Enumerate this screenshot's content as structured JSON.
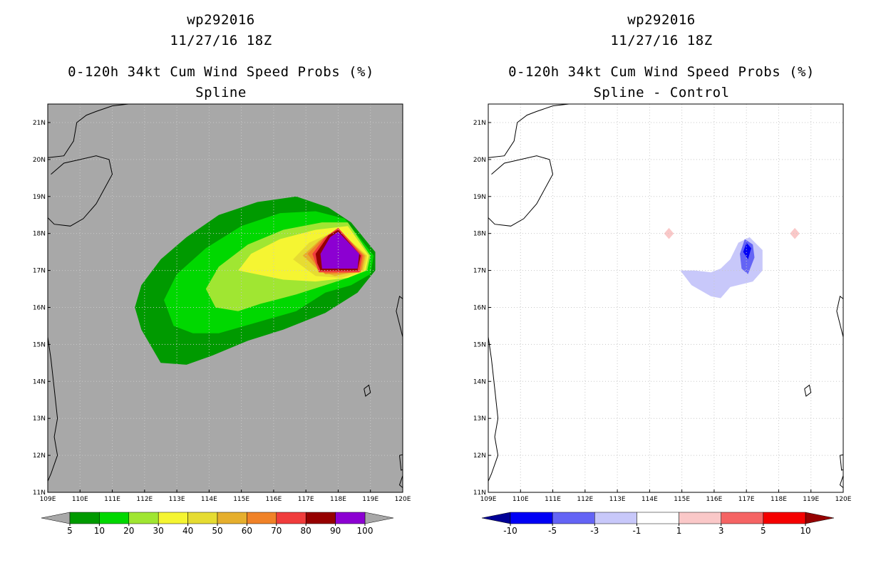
{
  "chart_data": [
    {
      "type": "heatmap",
      "id": "left",
      "title_lines": [
        "wp292016",
        "11/27/16 18Z",
        "0-120h 34kt Cum Wind Speed Probs (%)",
        "Spline"
      ],
      "xlabel": "",
      "ylabel": "",
      "xlim": [
        109,
        120
      ],
      "ylim": [
        11,
        21.5
      ],
      "x_ticks": [
        "109E",
        "110E",
        "111E",
        "112E",
        "113E",
        "114E",
        "115E",
        "116E",
        "117E",
        "118E",
        "119E",
        "120E"
      ],
      "y_ticks": [
        "11N",
        "12N",
        "13N",
        "14N",
        "15N",
        "16N",
        "17N",
        "18N",
        "19N",
        "20N",
        "21N"
      ],
      "grid": true,
      "background": "#a8a8a8",
      "colorbar": {
        "labels": [
          "5",
          "10",
          "20",
          "30",
          "40",
          "50",
          "60",
          "70",
          "80",
          "90",
          "100"
        ],
        "colors": [
          "#009a00",
          "#00d800",
          "#a0e632",
          "#f5f532",
          "#e6dc32",
          "#e6af2d",
          "#f08228",
          "#f03c3c",
          "#960000",
          "#8c00d2"
        ],
        "end_colors": [
          "#a8a8a8",
          "#a8a8a8"
        ]
      },
      "contours": [
        {
          "level": 5,
          "color": "#009a00",
          "points": [
            [
              111.9,
              15.4
            ],
            [
              111.7,
              16.0
            ],
            [
              111.9,
              16.6
            ],
            [
              112.5,
              17.3
            ],
            [
              113.3,
              17.9
            ],
            [
              114.3,
              18.5
            ],
            [
              115.5,
              18.85
            ],
            [
              116.7,
              19.0
            ],
            [
              117.7,
              18.7
            ],
            [
              118.4,
              18.3
            ],
            [
              119.15,
              17.5
            ],
            [
              119.15,
              17.0
            ],
            [
              118.6,
              16.4
            ],
            [
              117.6,
              15.85
            ],
            [
              116.3,
              15.4
            ],
            [
              115.2,
              15.1
            ],
            [
              114.1,
              14.7
            ],
            [
              113.3,
              14.45
            ],
            [
              112.5,
              14.5
            ]
          ]
        },
        {
          "level": 10,
          "color": "#00d800",
          "points": [
            [
              112.9,
              15.5
            ],
            [
              112.6,
              16.2
            ],
            [
              113.0,
              16.9
            ],
            [
              113.9,
              17.6
            ],
            [
              115.0,
              18.2
            ],
            [
              116.2,
              18.55
            ],
            [
              117.3,
              18.6
            ],
            [
              118.2,
              18.4
            ],
            [
              119.1,
              17.4
            ],
            [
              119.0,
              16.9
            ],
            [
              118.4,
              16.6
            ],
            [
              117.6,
              16.4
            ],
            [
              116.7,
              15.9
            ],
            [
              115.5,
              15.6
            ],
            [
              114.3,
              15.3
            ],
            [
              113.5,
              15.3
            ]
          ]
        },
        {
          "level": 20,
          "color": "#a0e632",
          "points": [
            [
              114.2,
              16.0
            ],
            [
              113.9,
              16.5
            ],
            [
              114.3,
              17.1
            ],
            [
              115.2,
              17.7
            ],
            [
              116.3,
              18.1
            ],
            [
              117.5,
              18.3
            ],
            [
              118.3,
              18.3
            ],
            [
              119.0,
              17.4
            ],
            [
              118.9,
              17.0
            ],
            [
              118.3,
              16.8
            ],
            [
              117.6,
              16.6
            ],
            [
              116.7,
              16.35
            ],
            [
              115.6,
              16.1
            ],
            [
              114.9,
              15.9
            ]
          ]
        },
        {
          "level": 30,
          "color": "#f5f532",
          "points": [
            [
              114.9,
              17.0
            ],
            [
              115.3,
              17.45
            ],
            [
              116.2,
              17.85
            ],
            [
              117.3,
              18.1
            ],
            [
              118.3,
              18.2
            ],
            [
              118.95,
              17.4
            ],
            [
              118.85,
              17.0
            ],
            [
              118.3,
              16.8
            ],
            [
              117.3,
              16.7
            ],
            [
              116.3,
              16.75
            ]
          ]
        },
        {
          "level": 40,
          "color": "#e6dc32",
          "points": [
            [
              116.6,
              17.3
            ],
            [
              117.1,
              17.75
            ],
            [
              118.0,
              18.1
            ],
            [
              118.9,
              17.4
            ],
            [
              118.8,
              17.0
            ],
            [
              118.1,
              16.8
            ],
            [
              117.3,
              16.85
            ]
          ]
        },
        {
          "level": 50,
          "color": "#e6af2d",
          "points": [
            [
              116.9,
              17.4
            ],
            [
              117.4,
              17.8
            ],
            [
              118.0,
              18.1
            ],
            [
              118.85,
              17.4
            ],
            [
              118.75,
              17.0
            ],
            [
              117.9,
              16.85
            ],
            [
              117.4,
              17.0
            ]
          ]
        },
        {
          "level": 60,
          "color": "#f08228",
          "points": [
            [
              117.05,
              17.45
            ],
            [
              117.5,
              17.85
            ],
            [
              118.0,
              18.15
            ],
            [
              118.8,
              17.4
            ],
            [
              118.7,
              16.95
            ],
            [
              117.6,
              16.9
            ],
            [
              117.35,
              17.1
            ]
          ]
        },
        {
          "level": 70,
          "color": "#f03c3c",
          "points": [
            [
              117.2,
              17.45
            ],
            [
              117.6,
              17.9
            ],
            [
              118.0,
              18.15
            ],
            [
              118.75,
              17.4
            ],
            [
              118.65,
              16.95
            ],
            [
              117.4,
              16.95
            ],
            [
              117.3,
              17.2
            ]
          ]
        },
        {
          "level": 80,
          "color": "#960000",
          "points": [
            [
              117.3,
              17.45
            ],
            [
              117.7,
              17.95
            ],
            [
              118.0,
              18.1
            ],
            [
              118.7,
              17.4
            ],
            [
              118.6,
              17.0
            ],
            [
              117.45,
              17.0
            ],
            [
              117.35,
              17.2
            ]
          ]
        },
        {
          "level": 90,
          "color": "#8c00d2",
          "points": [
            [
              117.45,
              17.45
            ],
            [
              117.75,
              17.9
            ],
            [
              118.0,
              18.05
            ],
            [
              118.65,
              17.45
            ],
            [
              118.6,
              17.05
            ],
            [
              117.5,
              17.05
            ]
          ]
        }
      ]
    },
    {
      "type": "heatmap",
      "id": "right",
      "title_lines": [
        "wp292016",
        "11/27/16 18Z",
        "0-120h 34kt Cum Wind Speed Probs (%)",
        "Spline - Control"
      ],
      "xlabel": "",
      "ylabel": "",
      "xlim": [
        109,
        120
      ],
      "ylim": [
        11,
        21.5
      ],
      "x_ticks": [
        "109E",
        "110E",
        "111E",
        "112E",
        "113E",
        "114E",
        "115E",
        "116E",
        "117E",
        "118E",
        "119E",
        "120E"
      ],
      "y_ticks": [
        "11N",
        "12N",
        "13N",
        "14N",
        "15N",
        "16N",
        "17N",
        "18N",
        "19N",
        "20N",
        "21N"
      ],
      "grid": true,
      "background": "#ffffff",
      "colorbar": {
        "labels": [
          "-10",
          "-5",
          "-3",
          "-1",
          "1",
          "3",
          "5",
          "10"
        ],
        "colors": [
          "#0000f5",
          "#6464f5",
          "#c8c8fa",
          "#ffffff",
          "#fac8c8",
          "#f56464",
          "#f50000"
        ],
        "end_colors": [
          "#000096",
          "#960000"
        ]
      },
      "contours": [
        {
          "level": -1,
          "color": "#c8c8fa",
          "points": [
            [
              114.95,
              17.0
            ],
            [
              115.3,
              16.6
            ],
            [
              115.9,
              16.3
            ],
            [
              116.2,
              16.25
            ],
            [
              116.5,
              16.55
            ],
            [
              117.2,
              16.7
            ],
            [
              117.5,
              17.0
            ],
            [
              117.5,
              17.55
            ],
            [
              117.1,
              17.9
            ],
            [
              116.75,
              17.75
            ],
            [
              116.5,
              17.3
            ],
            [
              116.2,
              17.05
            ],
            [
              115.9,
              16.95
            ],
            [
              115.4,
              17.0
            ]
          ]
        },
        {
          "level": -3,
          "color": "#6464f5",
          "points": [
            [
              116.8,
              17.45
            ],
            [
              116.95,
              17.85
            ],
            [
              117.2,
              17.7
            ],
            [
              117.25,
              17.35
            ],
            [
              117.05,
              16.9
            ],
            [
              116.85,
              17.05
            ]
          ]
        },
        {
          "level": -5,
          "color": "#0000f5",
          "points": [
            [
              116.9,
              17.5
            ],
            [
              117.0,
              17.75
            ],
            [
              117.15,
              17.6
            ],
            [
              117.05,
              17.3
            ]
          ]
        },
        {
          "level": 1,
          "color": "#fac8c8",
          "points": [
            [
              114.45,
              18.0
            ],
            [
              114.6,
              18.15
            ],
            [
              114.75,
              18.0
            ],
            [
              114.6,
              17.85
            ]
          ]
        },
        {
          "level": 1,
          "color": "#fac8c8",
          "points": [
            [
              118.35,
              18.0
            ],
            [
              118.5,
              18.15
            ],
            [
              118.65,
              18.0
            ],
            [
              118.5,
              17.85
            ]
          ]
        }
      ]
    }
  ]
}
